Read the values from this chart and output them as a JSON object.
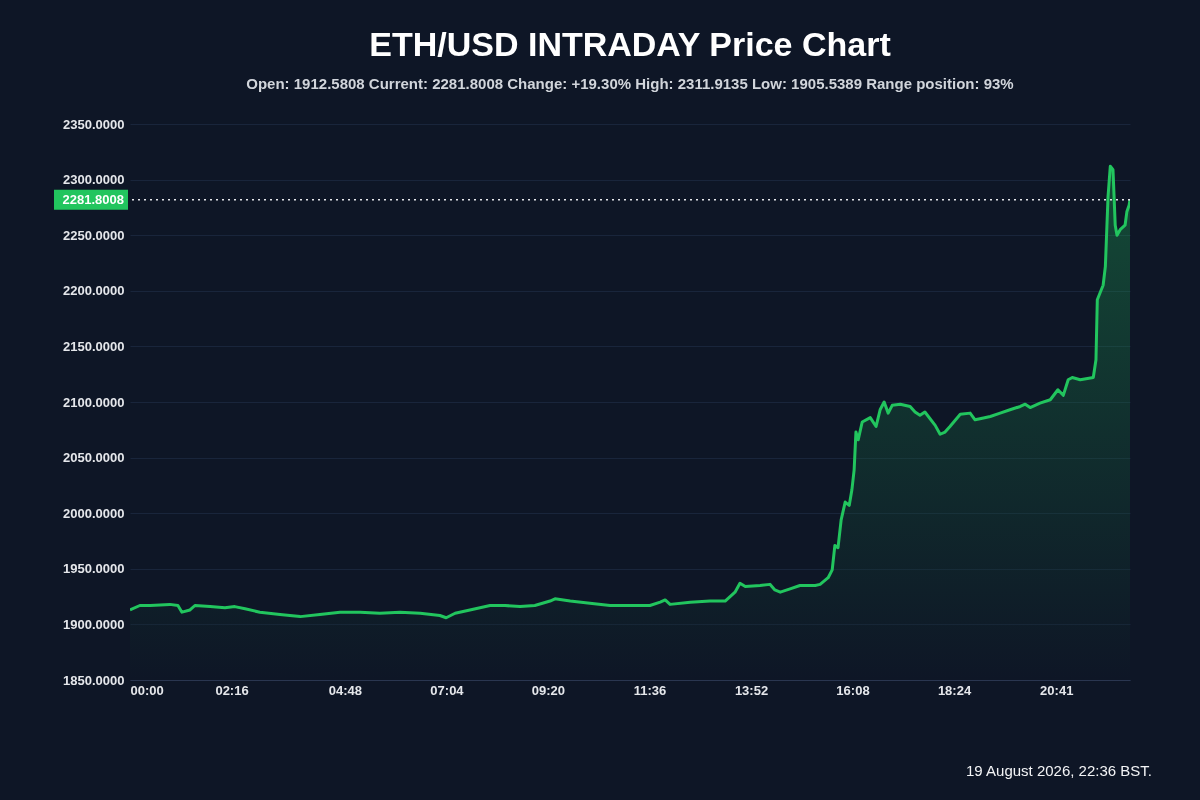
{
  "chart_data": {
    "type": "area",
    "title": "ETH/USD INTRADAY Price Chart",
    "subtitle": "Open: 1912.5808   Current: 2281.8008   Change: +19.30%   High: 2311.9135   Low: 1905.5389   Range position: 93%",
    "x": [
      0,
      0.22,
      0.45,
      0.89,
      1.07,
      1.16,
      1.34,
      1.45,
      1.79,
      2.12,
      2.34,
      2.57,
      2.9,
      3.35,
      3.57,
      3.8,
      4.24,
      4.69,
      5.14,
      5.58,
      6.03,
      6.48,
      6.92,
      7.06,
      7.26,
      7.59,
      8.04,
      8.37,
      8.71,
      9.04,
      9.38,
      9.49,
      9.83,
      10.27,
      10.72,
      11.17,
      11.61,
      11.84,
      11.95,
      12.06,
      12.51,
      12.95,
      13.29,
      13.51,
      13.62,
      13.74,
      14.07,
      14.29,
      14.4,
      14.52,
      14.74,
      14.96,
      15.3,
      15.41,
      15.59,
      15.68,
      15.74,
      15.81,
      15.88,
      15.97,
      16.06,
      16.12,
      16.17,
      16.21,
      16.26,
      16.35,
      16.53,
      16.66,
      16.75,
      16.84,
      16.93,
      17.02,
      17.2,
      17.42,
      17.53,
      17.64,
      17.75,
      17.98,
      18.09,
      18.2,
      18.31,
      18.54,
      18.76,
      18.87,
      18.98,
      19.21,
      19.43,
      19.65,
      19.88,
      19.99,
      20.1,
      20.32,
      20.55,
      20.72,
      20.84,
      20.95,
      21.04,
      21.22,
      21.51,
      21.57,
      21.6,
      21.66,
      21.73,
      21.78,
      21.84,
      21.89,
      21.95,
      22.0,
      22.04,
      22.11,
      22.22,
      22.26,
      22.31,
      22.33
    ],
    "series": [
      {
        "color": "#22c55e",
        "values": [
          1913,
          1917,
          1917,
          1918,
          1917,
          1911,
          1913,
          1917,
          1916,
          1915,
          1916,
          1914,
          1911,
          1909,
          1908,
          1907,
          1909,
          1911,
          1911,
          1910,
          1911,
          1910,
          1908,
          1906,
          1910,
          1913,
          1917,
          1917,
          1916,
          1917,
          1921,
          1923,
          1921,
          1919,
          1917,
          1917,
          1917,
          1920,
          1922,
          1918,
          1920,
          1921,
          1921,
          1929,
          1937,
          1934,
          1935,
          1936,
          1931,
          1929,
          1932,
          1935,
          1935,
          1936,
          1942,
          1949,
          1971,
          1969,
          1994,
          2010,
          2007,
          2021,
          2039,
          2073,
          2066,
          2082,
          2086,
          2078,
          2093,
          2100,
          2090,
          2097,
          2098,
          2096,
          2091,
          2088,
          2091,
          2079,
          2071,
          2073,
          2078,
          2089,
          2090,
          2084,
          2085,
          2087,
          2090,
          2093,
          2096,
          2098,
          2095,
          2099,
          2102,
          2111,
          2106,
          2120,
          2122,
          2120,
          2122,
          2138,
          2192,
          2198,
          2205,
          2222,
          2285,
          2312,
          2309,
          2259,
          2250,
          2255,
          2259,
          2271,
          2277,
          2282
        ]
      }
    ],
    "xlim": [
      0,
      22.33
    ],
    "xticks": [
      {
        "value": 0,
        "label": "00:00"
      },
      {
        "value": 2.267,
        "label": "02:16"
      },
      {
        "value": 4.8,
        "label": "04:48"
      },
      {
        "value": 7.067,
        "label": "07:04"
      },
      {
        "value": 9.333,
        "label": "09:20"
      },
      {
        "value": 11.6,
        "label": "11:36"
      },
      {
        "value": 13.867,
        "label": "13:52"
      },
      {
        "value": 16.133,
        "label": "16:08"
      },
      {
        "value": 18.4,
        "label": "18:24"
      },
      {
        "value": 20.683,
        "label": "20:41"
      }
    ],
    "ylim": [
      1850,
      2350
    ],
    "yticks": [
      {
        "value": 1850,
        "label": "1850.0000"
      },
      {
        "value": 1900,
        "label": "1900.0000"
      },
      {
        "value": 1950,
        "label": "1950.0000"
      },
      {
        "value": 2000,
        "label": "2000.0000"
      },
      {
        "value": 2050,
        "label": "2050.0000"
      },
      {
        "value": 2100,
        "label": "2100.0000"
      },
      {
        "value": 2150,
        "label": "2150.0000"
      },
      {
        "value": 2200,
        "label": "2200.0000"
      },
      {
        "value": 2250,
        "label": "2250.0000"
      },
      {
        "value": 2300,
        "label": "2300.0000"
      },
      {
        "value": 2350,
        "label": "2350.0000"
      }
    ],
    "ref_lines": [
      {
        "axis": "y",
        "value": 2281.8008,
        "label": "2281.8008",
        "color": "#e5e7eb",
        "line_style": "dotted"
      }
    ],
    "grid": "y",
    "annotations": [
      "19 August 2026, 22:36 BST."
    ]
  }
}
